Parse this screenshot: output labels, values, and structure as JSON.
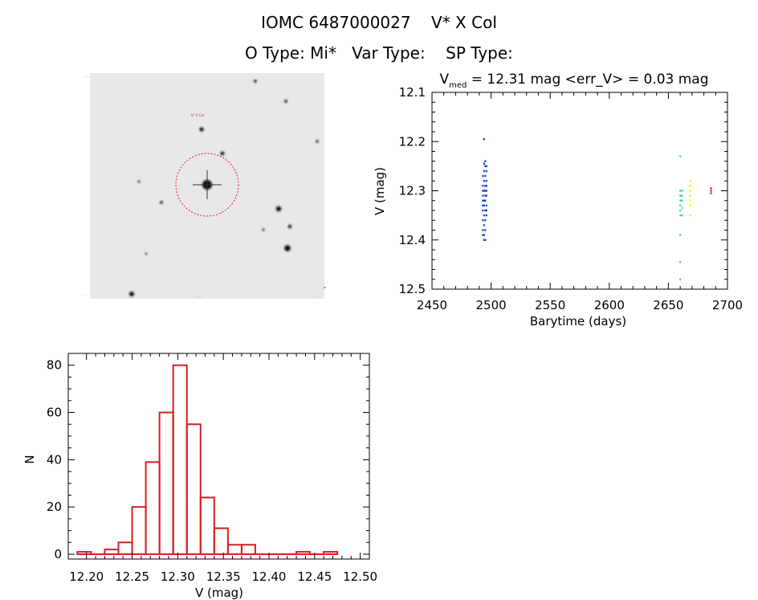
{
  "header": {
    "title_line1": "IOMC 6487000027    V* X Col",
    "title_line2": "O Type: Mi*   Var Type:    SP Type:"
  },
  "sky_image": {
    "target_label": "V* X Col"
  },
  "chart_data": [
    {
      "type": "scatter",
      "title": "V_med = 12.31 mag  <err_V> = 0.03 mag",
      "title_parts": {
        "v": "V",
        "sub": "med",
        "rest": " = 12.31 mag <err_V> = 0.03 mag"
      },
      "xlabel": "Barytime (days)",
      "ylabel": "V (mag)",
      "xlim": [
        2450,
        2700
      ],
      "ylim": [
        12.1,
        12.5
      ],
      "y_inverted": true,
      "xticks": [
        2450,
        2500,
        2550,
        2600,
        2650,
        2700
      ],
      "yticks": [
        12.1,
        12.2,
        12.3,
        12.4,
        12.5
      ],
      "colors": {
        "blue": "#1f3fd6",
        "green": "#2ee39a",
        "yellow": "#f2e82a",
        "red": "#d42020"
      },
      "clusters": [
        {
          "color": "blue",
          "x": 2494.0,
          "y": [
            12.195,
            12.245,
            12.26,
            12.28,
            12.3,
            12.32,
            12.33,
            12.35,
            12.37,
            12.39,
            12.4
          ]
        },
        {
          "color": "blue",
          "x": 2495.0,
          "y": [
            12.24,
            12.25,
            12.27,
            12.29,
            12.3,
            12.31,
            12.32,
            12.34,
            12.36,
            12.38,
            12.4
          ]
        },
        {
          "color": "blue",
          "x": 2496.0,
          "y": [
            12.25,
            12.26,
            12.28,
            12.29,
            12.3,
            12.31,
            12.33,
            12.34,
            12.35
          ]
        },
        {
          "color": "blue",
          "x": 2493.0,
          "y": [
            12.27,
            12.29,
            12.3,
            12.31,
            12.32,
            12.33,
            12.34,
            12.36,
            12.38,
            12.39
          ]
        },
        {
          "color": "green",
          "x": 2660.0,
          "y": [
            12.23,
            12.3,
            12.31,
            12.32,
            12.33,
            12.34,
            12.35,
            12.39,
            12.445,
            12.48
          ]
        },
        {
          "color": "green",
          "x": 2661.5,
          "y": [
            12.3,
            12.31,
            12.32,
            12.335,
            12.35
          ]
        },
        {
          "color": "yellow",
          "x": 2668.5,
          "y": [
            12.28,
            12.29,
            12.3,
            12.31,
            12.32,
            12.33,
            12.35
          ]
        },
        {
          "color": "red",
          "x": 2686.0,
          "y": [
            12.295,
            12.3,
            12.305
          ]
        }
      ]
    },
    {
      "type": "bar",
      "xlabel": "V (mag)",
      "ylabel": "N",
      "xlim": [
        12.18,
        12.51
      ],
      "ylim": [
        0,
        85
      ],
      "xticks": [
        "12.20",
        "12.25",
        "12.30",
        "12.35",
        "12.40",
        "12.45",
        "12.50"
      ],
      "yticks": [
        0,
        20,
        40,
        60,
        80
      ],
      "bin_width": 0.015,
      "bins": [
        {
          "left": 12.19,
          "count": 1
        },
        {
          "left": 12.205,
          "count": 0
        },
        {
          "left": 12.22,
          "count": 2
        },
        {
          "left": 12.235,
          "count": 5
        },
        {
          "left": 12.25,
          "count": 20
        },
        {
          "left": 12.265,
          "count": 39
        },
        {
          "left": 12.28,
          "count": 60
        },
        {
          "left": 12.295,
          "count": 80
        },
        {
          "left": 12.31,
          "count": 55
        },
        {
          "left": 12.325,
          "count": 24
        },
        {
          "left": 12.34,
          "count": 11
        },
        {
          "left": 12.355,
          "count": 4
        },
        {
          "left": 12.37,
          "count": 4
        },
        {
          "left": 12.385,
          "count": 0
        },
        {
          "left": 12.4,
          "count": 0
        },
        {
          "left": 12.415,
          "count": 0
        },
        {
          "left": 12.43,
          "count": 1
        },
        {
          "left": 12.445,
          "count": 0
        },
        {
          "left": 12.46,
          "count": 1
        }
      ],
      "bar_color": "#d42020"
    }
  ]
}
